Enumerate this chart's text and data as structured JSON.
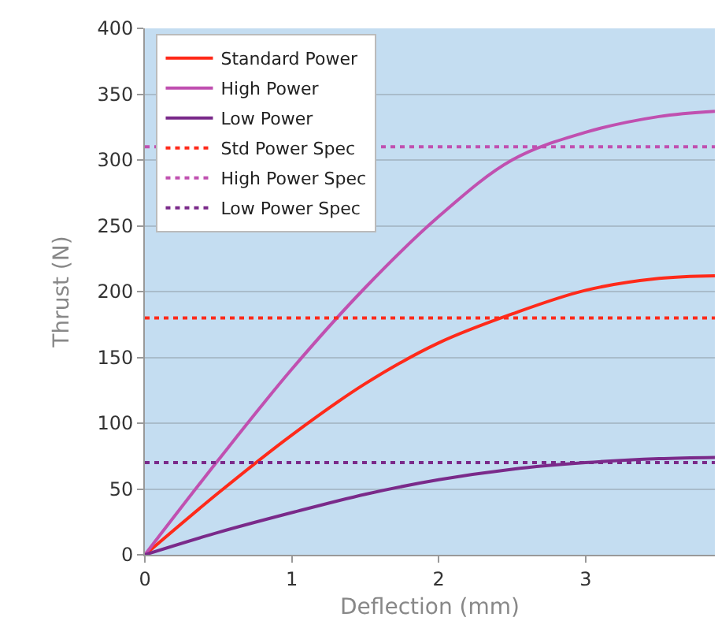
{
  "chart_data": {
    "type": "line",
    "xlabel": "Deflection (mm)",
    "ylabel": "Thrust (N)",
    "x": [
      0,
      0.5,
      1,
      1.5,
      2,
      2.5,
      3,
      3.5,
      3.88
    ],
    "series": [
      {
        "name": "Standard Power",
        "color": "#ff2a1a",
        "values": [
          0,
          47,
          91,
          130,
          161,
          183,
          201,
          210,
          212
        ]
      },
      {
        "name": "High Power",
        "color": "#c050b0",
        "values": [
          0,
          72,
          141,
          203,
          257,
          300,
          321,
          333,
          337
        ]
      },
      {
        "name": "Low Power",
        "color": "#7a2a8a",
        "values": [
          0,
          17,
          32,
          46,
          57,
          65,
          70,
          73,
          74
        ]
      }
    ],
    "ref_lines": [
      {
        "axis": "y",
        "value": 180,
        "label": "Std Power Spec",
        "color": "#ff2a1a",
        "line_style": "dotted"
      },
      {
        "axis": "y",
        "value": 310,
        "label": "High Power Spec",
        "color": "#c050b0",
        "line_style": "dotted"
      },
      {
        "axis": "y",
        "value": 70,
        "label": "Low Power Spec",
        "color": "#7a2a8a",
        "line_style": "dotted"
      }
    ],
    "xlim": [
      0,
      3.88
    ],
    "xticks": [
      0,
      1,
      2,
      3
    ],
    "ylim": [
      0,
      400
    ],
    "yticks": [
      0,
      50,
      100,
      150,
      200,
      250,
      300,
      350,
      400
    ],
    "grid": "y",
    "legend": "top left",
    "marker": "none",
    "line_style": "solid"
  }
}
